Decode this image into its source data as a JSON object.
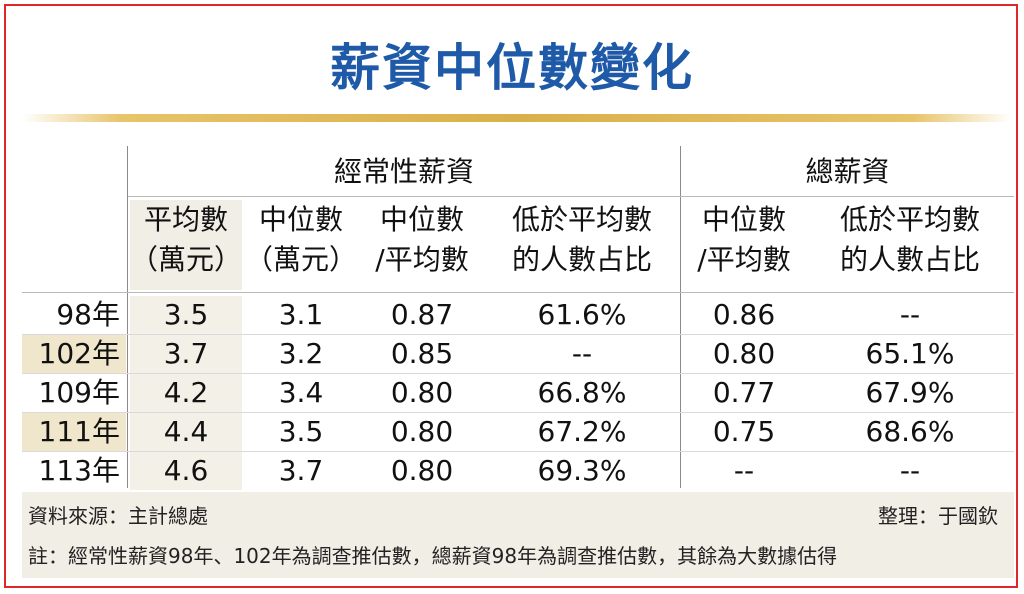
{
  "title": "薪資中位數變化",
  "table": {
    "groups": {
      "regular": "經常性薪資",
      "total": "總薪資"
    },
    "headers": [
      [
        "平均數",
        "（萬元）"
      ],
      [
        "中位數",
        "（萬元）"
      ],
      [
        "中位數",
        "/平均數"
      ],
      [
        "低於平均數",
        "的人數占比"
      ],
      [
        "中位數",
        "/平均數"
      ],
      [
        "低於平均數",
        "的人數占比"
      ]
    ],
    "rows": [
      {
        "label": "98年",
        "cells": [
          "3.5",
          "3.1",
          "0.87",
          "61.6%",
          "0.86",
          "--"
        ]
      },
      {
        "label": "102年",
        "cells": [
          "3.7",
          "3.2",
          "0.85",
          "--",
          "0.80",
          "65.1%"
        ]
      },
      {
        "label": "109年",
        "cells": [
          "4.2",
          "3.4",
          "0.80",
          "66.8%",
          "0.77",
          "67.9%"
        ]
      },
      {
        "label": "111年",
        "cells": [
          "4.4",
          "3.5",
          "0.80",
          "67.2%",
          "0.75",
          "68.6%"
        ]
      },
      {
        "label": "113年",
        "cells": [
          "4.6",
          "3.7",
          "0.80",
          "69.3%",
          "--",
          "--"
        ]
      }
    ]
  },
  "source": "資料來源：主計總處",
  "credit": "整理：于國欽",
  "note": "註：經常性薪資98年、102年為調查推估數，總薪資98年為調查推估數，其餘為大數據估得",
  "colors": {
    "title": "#1f5aa8",
    "border": "#e0262b",
    "accent_bar": "#d9b04a",
    "row_shade": "#efe6cc"
  },
  "chart_data": {
    "type": "table",
    "title": "薪資中位數變化",
    "column_groups": [
      {
        "name": "經常性薪資",
        "columns": [
          "平均數（萬元）",
          "中位數（萬元）",
          "中位數/平均數",
          "低於平均數的人數占比"
        ]
      },
      {
        "name": "總薪資",
        "columns": [
          "中位數/平均數",
          "低於平均數的人數占比"
        ]
      }
    ],
    "categories": [
      "98年",
      "102年",
      "109年",
      "111年",
      "113年"
    ],
    "series": [
      {
        "name": "經常性薪資 平均數（萬元）",
        "values": [
          3.5,
          3.7,
          4.2,
          4.4,
          4.6
        ]
      },
      {
        "name": "經常性薪資 中位數（萬元）",
        "values": [
          3.1,
          3.2,
          3.4,
          3.5,
          3.7
        ]
      },
      {
        "name": "經常性薪資 中位數/平均數",
        "values": [
          0.87,
          0.85,
          0.8,
          0.8,
          0.8
        ]
      },
      {
        "name": "經常性薪資 低於平均數的人數占比",
        "values": [
          61.6,
          null,
          66.8,
          67.2,
          69.3
        ]
      },
      {
        "name": "總薪資 中位數/平均數",
        "values": [
          0.86,
          0.8,
          0.77,
          0.75,
          null
        ]
      },
      {
        "name": "總薪資 低於平均數的人數占比",
        "values": [
          null,
          65.1,
          67.9,
          68.6,
          null
        ]
      }
    ]
  }
}
